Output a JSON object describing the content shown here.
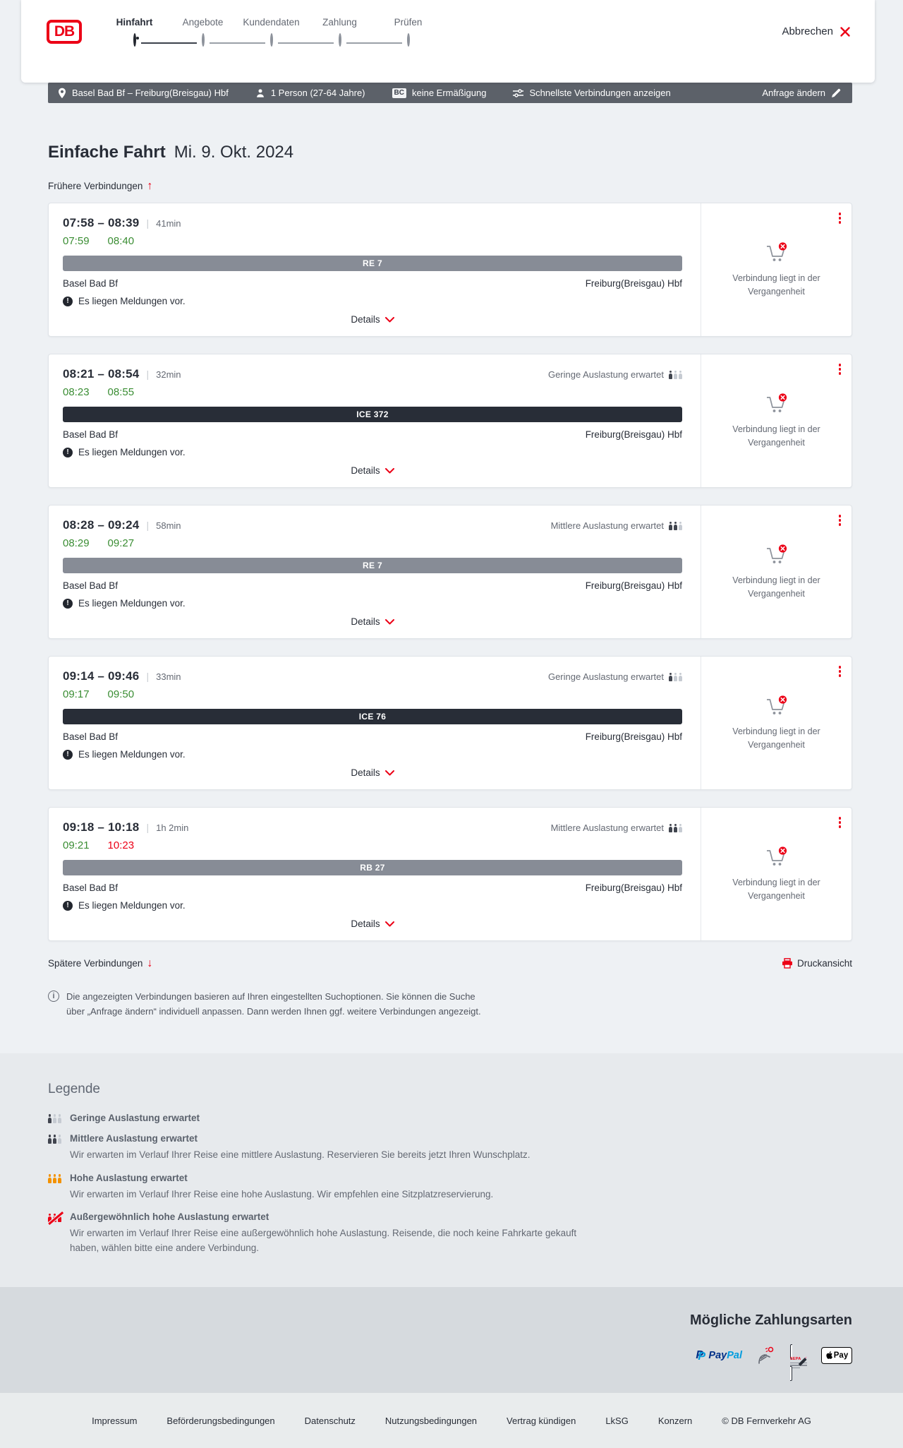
{
  "header": {
    "logo_text": "DB",
    "steps": [
      {
        "label": "Hinfahrt",
        "active": true
      },
      {
        "label": "Angebote",
        "active": false
      },
      {
        "label": "Kundendaten",
        "active": false
      },
      {
        "label": "Zahlung",
        "active": false
      },
      {
        "label": "Prüfen",
        "active": false
      }
    ],
    "cancel_label": "Abbrechen"
  },
  "querybar": {
    "route": "Basel Bad Bf – Freiburg(Breisgau) Hbf",
    "person": "1 Person (27-64 Jahre)",
    "bahncard_badge": "BC",
    "discount": "keine Ermäßigung",
    "fastest": "Schnellste Verbindungen anzeigen",
    "change_request": "Anfrage ändern"
  },
  "page": {
    "title": "Einfache Fahrt",
    "date": "Mi. 9. Okt. 2024",
    "earlier_label": "Frühere Verbindungen",
    "later_label": "Spätere Verbindungen",
    "print_label": "Druckansicht",
    "info_text": "Die angezeigten Verbindungen basieren auf Ihren eingestellten Suchoptionen. Sie können die Suche über „Anfrage ändern“ individuell anpassen. Dann werden Ihnen ggf. weitere Verbindungen angezeigt."
  },
  "connections": [
    {
      "time_range": "07:58 – 08:39",
      "duration": "41min",
      "occupancy": null,
      "occupancy_level": 0,
      "dep_actual": "07:59",
      "arr_actual": "08:40",
      "arr_delayed": false,
      "train": "RE 7",
      "train_type": "regional",
      "from": "Basel Bad Bf",
      "to": "Freiburg(Breisgau) Hbf",
      "message": "Es liegen Meldungen vor.",
      "details_label": "Details",
      "status": "Verbindung liegt in der Vergangenheit"
    },
    {
      "time_range": "08:21 – 08:54",
      "duration": "32min",
      "occupancy": "Geringe Auslastung erwartet",
      "occupancy_level": 1,
      "dep_actual": "08:23",
      "arr_actual": "08:55",
      "arr_delayed": false,
      "train": "ICE 372",
      "train_type": "ice",
      "from": "Basel Bad Bf",
      "to": "Freiburg(Breisgau) Hbf",
      "message": "Es liegen Meldungen vor.",
      "details_label": "Details",
      "status": "Verbindung liegt in der Vergangenheit"
    },
    {
      "time_range": "08:28 – 09:24",
      "duration": "58min",
      "occupancy": "Mittlere Auslastung erwartet",
      "occupancy_level": 2,
      "dep_actual": "08:29",
      "arr_actual": "09:27",
      "arr_delayed": false,
      "train": "RE 7",
      "train_type": "regional",
      "from": "Basel Bad Bf",
      "to": "Freiburg(Breisgau) Hbf",
      "message": "Es liegen Meldungen vor.",
      "details_label": "Details",
      "status": "Verbindung liegt in der Vergangenheit"
    },
    {
      "time_range": "09:14 – 09:46",
      "duration": "33min",
      "occupancy": "Geringe Auslastung erwartet",
      "occupancy_level": 1,
      "dep_actual": "09:17",
      "arr_actual": "09:50",
      "arr_delayed": false,
      "train": "ICE 76",
      "train_type": "ice",
      "from": "Basel Bad Bf",
      "to": "Freiburg(Breisgau) Hbf",
      "message": "Es liegen Meldungen vor.",
      "details_label": "Details",
      "status": "Verbindung liegt in der Vergangenheit"
    },
    {
      "time_range": "09:18 – 10:18",
      "duration": "1h 2min",
      "occupancy": "Mittlere Auslastung erwartet",
      "occupancy_level": 2,
      "dep_actual": "09:21",
      "arr_actual": "10:23",
      "arr_delayed": true,
      "train": "RB 27",
      "train_type": "regional",
      "from": "Basel Bad Bf",
      "to": "Freiburg(Breisgau) Hbf",
      "message": "Es liegen Meldungen vor.",
      "details_label": "Details",
      "status": "Verbindung liegt in der Vergangenheit"
    }
  ],
  "legend": {
    "title": "Legende",
    "items": [
      {
        "label": "Geringe Auslastung erwartet",
        "desc": null,
        "level": "low"
      },
      {
        "label": "Mittlere Auslastung erwartet",
        "desc": "Wir erwarten im Verlauf Ihrer Reise eine mittlere Auslastung. Reservieren Sie bereits jetzt Ihren Wunschplatz.",
        "level": "mid"
      },
      {
        "label": "Hohe Auslastung erwartet",
        "desc": "Wir erwarten im Verlauf Ihrer Reise eine hohe Auslastung. Wir empfehlen eine Sitzplatzreservierung.",
        "level": "high"
      },
      {
        "label": "Außergewöhnlich hohe Auslastung erwartet",
        "desc": "Wir erwarten im Verlauf Ihrer Reise eine außergewöhnlich hohe Auslastung. Reisende, die noch keine Fahrkarte gekauft haben, wählen bitte eine andere Verbindung.",
        "level": "extreme"
      }
    ]
  },
  "payments": {
    "title": "Mögliche Zahlungsarten",
    "paypal_pay": "Pay",
    "paypal_pal": "Pal",
    "sepa_label": "SEPA",
    "applepay_label": "Pay"
  },
  "footer": {
    "links": [
      "Impressum",
      "Beförderungsbedingungen",
      "Datenschutz",
      "Nutzungsbedingungen",
      "Vertrag kündigen",
      "LkSG",
      "Konzern"
    ],
    "copyright": "© DB Fernverkehr AG"
  },
  "colors": {
    "brand_red": "#ec0016",
    "dark": "#282d37",
    "green_ontime": "#3a8d33",
    "ice_bar": "#282d37",
    "regional_bar": "#878c96"
  }
}
